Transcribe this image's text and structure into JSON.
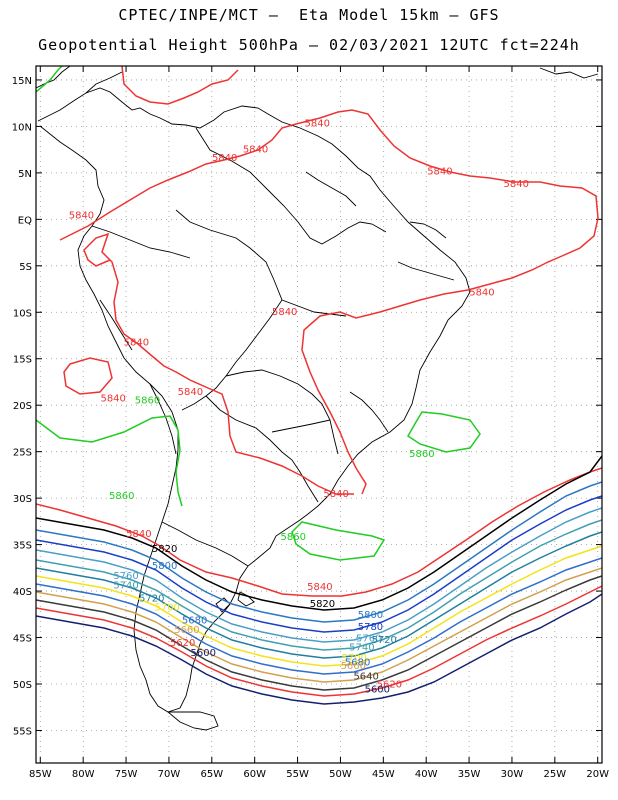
{
  "header": {
    "line1": "CPTEC/INPE/MCT –  Eta Model 15km – GFS",
    "line2": "Geopotential Height 500hPa – 02/03/2021 12UTC fct=224h"
  },
  "axes": {
    "lat_labels": [
      "15N",
      "10N",
      "5N",
      "EQ",
      "5S",
      "10S",
      "15S",
      "20S",
      "25S",
      "30S",
      "35S",
      "40S",
      "45S",
      "50S",
      "55S"
    ],
    "lon_labels": [
      "85W",
      "80W",
      "75W",
      "70W",
      "65W",
      "60W",
      "55W",
      "50W",
      "45W",
      "40W",
      "35W",
      "30W",
      "25W",
      "20W"
    ],
    "lon_range": [
      -85.5,
      -19.5
    ],
    "lat_range": [
      16.5,
      -58.5
    ],
    "grid": "dotted"
  },
  "contours": [
    {
      "value": 5860,
      "label": "5860",
      "color": "#22cc22"
    },
    {
      "value": 5840,
      "label": "5840",
      "color": "#ee3333"
    },
    {
      "value": 5820,
      "label": "5820",
      "color": "#000000"
    },
    {
      "value": 5800,
      "label": "5800",
      "color": "#2a78c4"
    },
    {
      "value": 5780,
      "label": "5780",
      "color": "#1a3ec8"
    },
    {
      "value": 5760,
      "label": "5760",
      "color": "#4a9ec8"
    },
    {
      "value": 5740,
      "label": "5740",
      "color": "#3fa0b0"
    },
    {
      "value": 5720,
      "label": "5720",
      "color": "#1f7fa0"
    },
    {
      "value": 5700,
      "label": "5700",
      "color": "#f2e418"
    },
    {
      "value": 5680,
      "label": "5680",
      "color": "#2e6ecc"
    },
    {
      "value": 5660,
      "label": "5660",
      "color": "#d2a050"
    },
    {
      "value": 5640,
      "label": "5640",
      "color": "#3a3a3a"
    },
    {
      "value": 5620,
      "label": "5620",
      "color": "#ee3333"
    },
    {
      "value": 5600,
      "label": "5600",
      "color": "#14206e"
    }
  ]
}
